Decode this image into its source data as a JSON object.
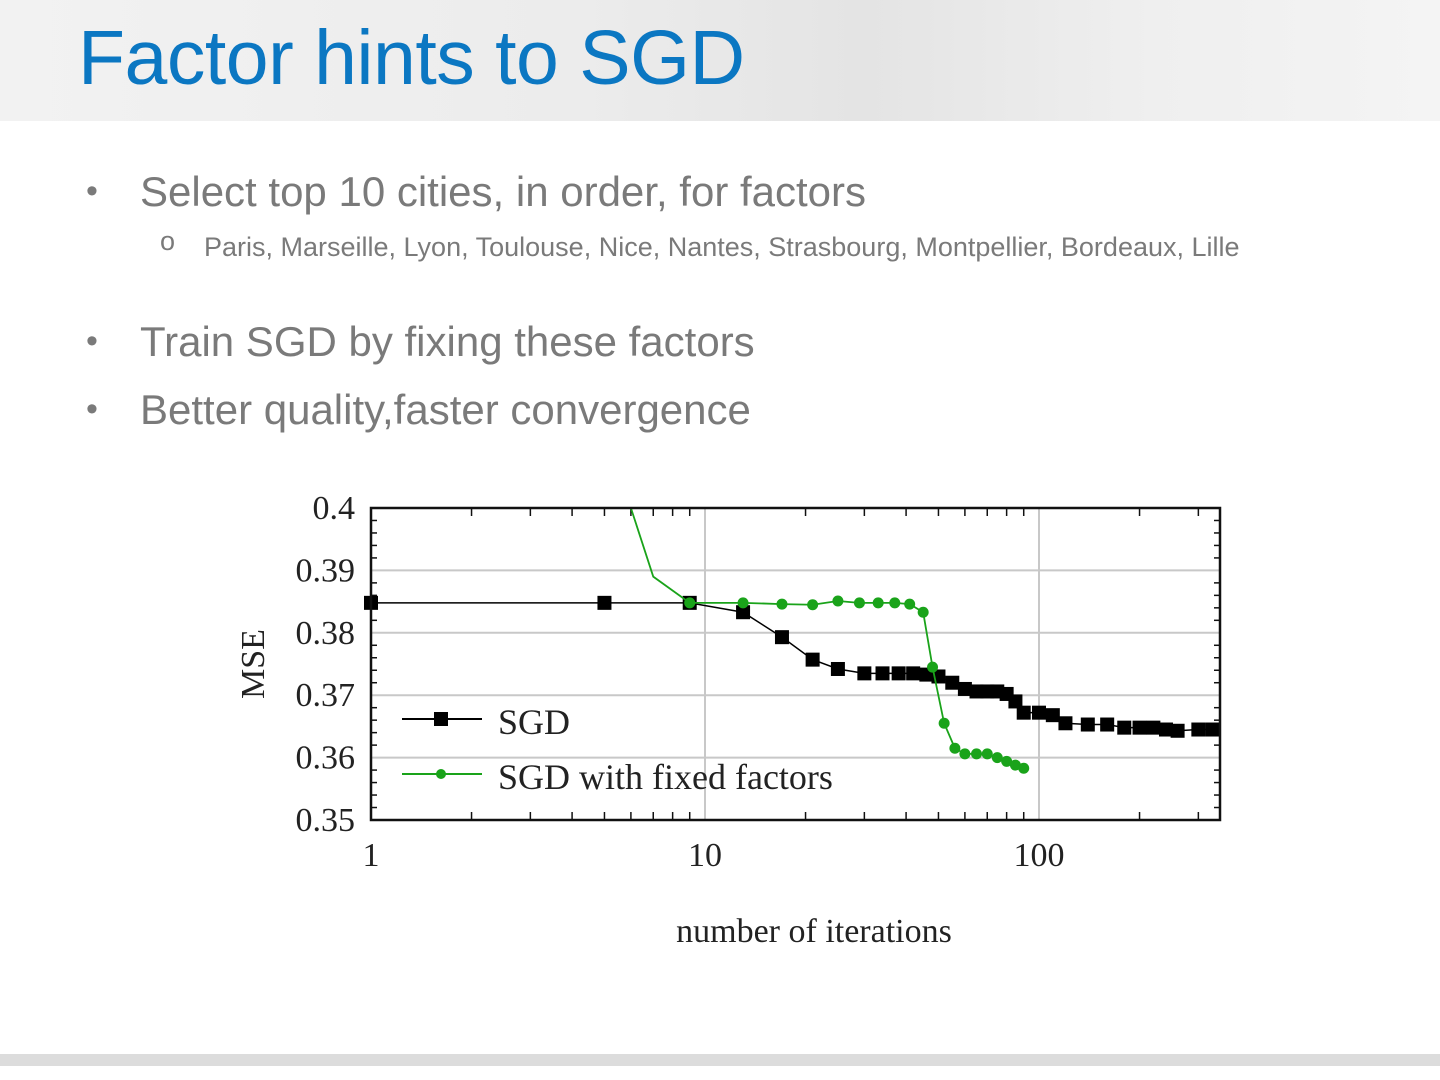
{
  "slide": {
    "title": "Factor hints to SGD",
    "bullets": [
      {
        "text": "Select top 10 cities, in order, for factors",
        "sub": {
          "marker": "o",
          "text": "Paris, Marseille, Lyon, Toulouse, Nice, Nantes, Strasbourg, Montpellier, Bordeaux, Lille"
        }
      },
      {
        "text": "Train SGD by fixing these factors"
      },
      {
        "text": "Better quality,faster convergence"
      }
    ],
    "bullet_marker": "•"
  },
  "chart_data": {
    "type": "line",
    "title": "",
    "xlabel": "number of iterations",
    "ylabel": "MSE",
    "xscale": "log",
    "xlim": [
      1,
      350
    ],
    "ylim": [
      0.35,
      0.4
    ],
    "xticks": [
      {
        "v": 1,
        "label": "1"
      },
      {
        "v": 10,
        "label": "10"
      },
      {
        "v": 100,
        "label": "100"
      }
    ],
    "yticks": [
      {
        "v": 0.4,
        "label": "0.4"
      },
      {
        "v": 0.39,
        "label": "0.39"
      },
      {
        "v": 0.38,
        "label": "0.38"
      },
      {
        "v": 0.37,
        "label": "0.37"
      },
      {
        "v": 0.36,
        "label": "0.36"
      },
      {
        "v": 0.35,
        "label": "0.35"
      }
    ],
    "grid": true,
    "legend_placement": "bottom-left",
    "colors": {
      "SGD": "#000000",
      "SGD with fixed factors": "#1aa31a"
    },
    "series": [
      {
        "name": "SGD",
        "marker": "square",
        "x": [
          1,
          5,
          9,
          13,
          17,
          21,
          25,
          30,
          34,
          38,
          42,
          46,
          50,
          55,
          60,
          65,
          70,
          75,
          80,
          85,
          90,
          100,
          110,
          120,
          140,
          160,
          180,
          200,
          220,
          240,
          260,
          300,
          330
        ],
        "y": [
          0.3848,
          0.3848,
          0.3848,
          0.3833,
          0.3793,
          0.3757,
          0.3742,
          0.3735,
          0.3735,
          0.3735,
          0.3735,
          0.3733,
          0.373,
          0.372,
          0.371,
          0.3706,
          0.3706,
          0.3706,
          0.3702,
          0.369,
          0.3672,
          0.3672,
          0.3668,
          0.3655,
          0.3653,
          0.3653,
          0.3648,
          0.3648,
          0.3648,
          0.3645,
          0.3643,
          0.3645,
          0.3645
        ]
      },
      {
        "name": "SGD with fixed factors",
        "marker": "circle",
        "x": [
          6,
          7,
          9,
          13,
          17,
          21,
          25,
          29,
          33,
          37,
          41,
          45,
          48,
          52,
          56,
          60,
          65,
          70,
          75,
          80,
          85,
          90
        ],
        "y": [
          0.4,
          0.389,
          0.3848,
          0.3848,
          0.3846,
          0.3845,
          0.3851,
          0.3848,
          0.3848,
          0.3848,
          0.3846,
          0.3833,
          0.3745,
          0.3655,
          0.3615,
          0.3606,
          0.3606,
          0.3606,
          0.36,
          0.3594,
          0.3588,
          0.3583
        ]
      }
    ]
  }
}
